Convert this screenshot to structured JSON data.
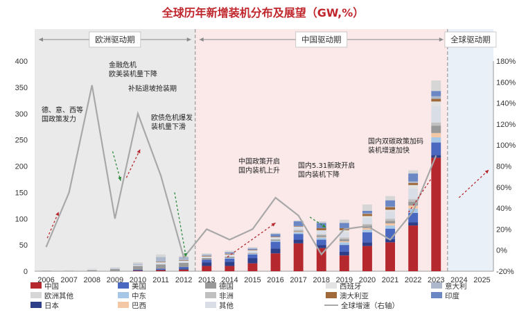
{
  "chart_data": {
    "type": "bar",
    "title": "全球历年新增装机分布及展望（GW,%）",
    "categories": [
      "2006",
      "2007",
      "2008",
      "2009",
      "2010",
      "2011",
      "2012",
      "2013",
      "2014",
      "2015",
      "2016",
      "2017",
      "2018",
      "2019",
      "2020",
      "2021",
      "2022",
      "2023",
      "2024",
      "2025"
    ],
    "stacked": true,
    "ylim": [
      0,
      400
    ],
    "y_ticks": [
      "0",
      "50",
      "100",
      "150",
      "200",
      "250",
      "300",
      "350",
      "400"
    ],
    "y2lim": [
      -20,
      180
    ],
    "y2_ticks": [
      "-20%",
      "0%",
      "20%",
      "40%",
      "60%",
      "80%",
      "100%",
      "120%",
      "140%",
      "160%",
      "180%"
    ],
    "series": [
      {
        "name": "中国",
        "color": "#b5282e",
        "values": [
          0,
          0,
          0,
          0,
          1,
          2,
          3,
          10,
          10,
          15,
          34,
          53,
          44,
          30,
          48,
          55,
          87,
          216,
          null,
          null
        ]
      },
      {
        "name": "日本",
        "color": "#2e3f8a",
        "values": [
          0,
          0,
          0,
          0,
          1,
          1,
          2,
          7,
          8,
          10,
          9,
          7,
          6,
          7,
          7,
          6,
          6,
          5,
          null,
          null
        ]
      },
      {
        "name": "美国",
        "color": "#4a68c0",
        "values": [
          0,
          0,
          0,
          0,
          1,
          2,
          3,
          5,
          6,
          7,
          13,
          11,
          10,
          13,
          19,
          20,
          18,
          24,
          null,
          null
        ]
      },
      {
        "name": "中东",
        "color": "#a6c8e6",
        "values": [
          0,
          0,
          0,
          0,
          0,
          0,
          0,
          0,
          1,
          1,
          2,
          3,
          4,
          5,
          5,
          6,
          8,
          10,
          null,
          null
        ]
      },
      {
        "name": "巴西",
        "color": "#f4c7a5",
        "values": [
          0,
          0,
          0,
          0,
          0,
          0,
          0,
          0,
          0,
          0,
          0,
          1,
          1,
          2,
          3,
          4,
          6,
          8,
          null,
          null
        ]
      },
      {
        "name": "德国",
        "color": "#999999",
        "values": [
          1,
          1,
          2,
          4,
          7,
          8,
          8,
          3,
          2,
          1,
          2,
          2,
          3,
          4,
          5,
          5,
          7,
          14,
          null,
          null
        ]
      },
      {
        "name": "非洲",
        "color": "#c0c0c0",
        "values": [
          0,
          0,
          0,
          0,
          0,
          0,
          0,
          0,
          1,
          1,
          1,
          2,
          2,
          3,
          3,
          4,
          5,
          6,
          null,
          null
        ]
      },
      {
        "name": "其他",
        "color": "#d9dde6",
        "values": [
          0,
          0,
          1,
          1,
          2,
          4,
          4,
          3,
          4,
          5,
          4,
          6,
          8,
          10,
          12,
          14,
          20,
          32,
          null,
          null
        ]
      },
      {
        "name": "西班牙",
        "color": "#e3e3e3",
        "values": [
          0,
          1,
          3,
          0,
          0,
          0,
          0,
          0,
          0,
          0,
          0,
          0,
          0,
          4,
          3,
          3,
          7,
          8,
          null,
          null
        ]
      },
      {
        "name": "澳大利亚",
        "color": "#a0693a",
        "values": [
          0,
          0,
          0,
          0,
          0,
          1,
          1,
          1,
          1,
          1,
          1,
          1,
          4,
          4,
          4,
          5,
          4,
          5,
          null,
          null
        ]
      },
      {
        "name": "意大利",
        "color": "#aeb8cc",
        "values": [
          0,
          0,
          0,
          1,
          2,
          9,
          4,
          1,
          1,
          0,
          0,
          0,
          0,
          0,
          1,
          1,
          3,
          5,
          null,
          null
        ]
      },
      {
        "name": "印度",
        "color": "#6b87c4",
        "values": [
          0,
          0,
          0,
          0,
          0,
          0,
          1,
          1,
          2,
          2,
          5,
          9,
          10,
          10,
          5,
          12,
          15,
          10,
          null,
          null
        ]
      },
      {
        "name": "欧洲其他",
        "color": "#d6d6d6",
        "values": [
          0,
          0,
          0,
          1,
          3,
          5,
          3,
          3,
          3,
          3,
          2,
          2,
          3,
          6,
          12,
          8,
          6,
          20,
          null,
          null
        ]
      }
    ],
    "line": {
      "name": "全球增速（右轴）",
      "color": "#a8a8a8",
      "axis": "right",
      "values": [
        3,
        55,
        157,
        30,
        130,
        71,
        -7,
        20,
        10,
        20,
        50,
        33,
        -4,
        20,
        23,
        10,
        37,
        90,
        null,
        null
      ]
    },
    "periods": [
      "欧洲驱动期",
      "中国驱动期",
      "全球驱动期"
    ],
    "period_colors": {
      "europe": "#eaeaea",
      "china": "#fbe9ea",
      "global": "#eaf0f8"
    },
    "arrows": [
      {
        "x0": 0.05,
        "y0": 63,
        "x1": 0.55,
        "y1": 113,
        "color": "#b5282e"
      },
      {
        "x0": 2.9,
        "y0": 228,
        "x1": 3.25,
        "y1": 172,
        "color": "#2e8b3e"
      },
      {
        "x0": 3.5,
        "y0": 178,
        "x1": 4.1,
        "y1": 232,
        "color": "#b5282e"
      },
      {
        "x0": 5.6,
        "y0": 150,
        "x1": 6.1,
        "y1": 27,
        "color": "#2e8b3e"
      },
      {
        "x0": 7.9,
        "y0": 27,
        "x1": 10.0,
        "y1": 92,
        "color": "#b5282e"
      },
      {
        "x0": 11.5,
        "y0": 103,
        "x1": 12.2,
        "y1": 83,
        "color": "#2e8b3e"
      },
      {
        "x0": 15.8,
        "y0": 112,
        "x1": 17.0,
        "y1": 190,
        "color": "#b5282e"
      },
      {
        "x0": 18.0,
        "y0": 140,
        "x1": 19.3,
        "y1": 193,
        "color": "#b5282e"
      }
    ],
    "annotations": [
      "德、意、西等\n国政策发力",
      "金融危机\n欧美装机量下降",
      "补贴退坡抢装期",
      "欧债危机爆发\n装机量下滑",
      "中国政策开启\n国内装机上升",
      "国内5.31新政开启\n国内装机下降",
      "国内双碳政策加码\n装机增速加快"
    ],
    "legend": [
      "中国",
      "美国",
      "德国",
      "西班牙",
      "意大利",
      "欧洲其他",
      "中东",
      "非洲",
      "澳大利亚",
      "印度",
      "日本",
      "巴西",
      "其他",
      "全球增速（右轴）"
    ]
  }
}
